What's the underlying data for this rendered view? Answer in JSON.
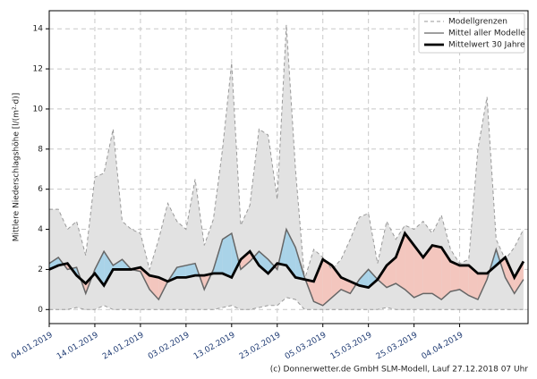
{
  "chart_data": {
    "type": "line",
    "x": [
      "04.01.2019",
      "06.01.2019",
      "08.01.2019",
      "10.01.2019",
      "12.01.2019",
      "14.01.2019",
      "16.01.2019",
      "18.01.2019",
      "20.01.2019",
      "22.01.2019",
      "24.01.2019",
      "26.01.2019",
      "28.01.2019",
      "30.01.2019",
      "01.02.2019",
      "03.02.2019",
      "05.02.2019",
      "07.02.2019",
      "09.02.2019",
      "11.02.2019",
      "13.02.2019",
      "15.02.2019",
      "17.02.2019",
      "19.02.2019",
      "21.02.2019",
      "23.02.2019",
      "25.02.2019",
      "27.02.2019",
      "01.03.2019",
      "03.03.2019",
      "05.03.2019",
      "07.03.2019",
      "09.03.2019",
      "11.03.2019",
      "13.03.2019",
      "15.03.2019",
      "17.03.2019",
      "19.03.2019",
      "21.03.2019",
      "23.03.2019",
      "25.03.2019",
      "27.03.2019",
      "29.03.2019",
      "31.03.2019",
      "02.04.2019",
      "04.04.2019",
      "06.04.2019",
      "08.04.2019",
      "10.04.2019",
      "12.04.2019",
      "14.04.2019",
      "16.04.2019",
      "18.04.2019"
    ],
    "series": [
      {
        "name": "Modellgrenzen",
        "color": "#999999",
        "fill": "#e2e2e2",
        "values": [
          5.0,
          5.0,
          4.0,
          4.4,
          2.7,
          6.6,
          6.8,
          9.0,
          4.4,
          4.0,
          3.8,
          2.0,
          3.5,
          5.3,
          4.4,
          4.0,
          6.5,
          3.2,
          4.5,
          8.0,
          12.3,
          4.2,
          5.2,
          9.0,
          8.7,
          5.5,
          14.2,
          7.0,
          1.5,
          3.0,
          2.6,
          2.0,
          2.5,
          3.5,
          4.6,
          4.8,
          2.3,
          4.4,
          3.5,
          4.2,
          4.0,
          4.4,
          3.8,
          4.7,
          3.0,
          2.3,
          2.5,
          8.0,
          10.6,
          3.5,
          2.5,
          3.1,
          4.0
        ],
        "lower": [
          0,
          0,
          0,
          0.1,
          0,
          0,
          0.2,
          0,
          0,
          0,
          0,
          0,
          0,
          0,
          0,
          0,
          0,
          0,
          0,
          0.1,
          0.2,
          0,
          0,
          0.1,
          0.2,
          0.2,
          0.6,
          0.5,
          0,
          0,
          0,
          0,
          0,
          0,
          0,
          0,
          0,
          0.1,
          0,
          0,
          0,
          0,
          0,
          0,
          0,
          0,
          0,
          0,
          0,
          0,
          0,
          0,
          0
        ]
      },
      {
        "name": "Mittel aller Modelle",
        "color": "#666666",
        "values": [
          2.3,
          2.6,
          2.0,
          2.1,
          0.8,
          2.0,
          2.9,
          2.2,
          2.5,
          2.0,
          1.9,
          1.0,
          0.5,
          1.4,
          2.1,
          2.2,
          2.3,
          1.0,
          2.0,
          3.5,
          3.8,
          2.0,
          2.4,
          2.9,
          2.5,
          2.0,
          4.0,
          3.1,
          1.6,
          0.4,
          0.2,
          0.6,
          1.0,
          0.8,
          1.5,
          2.0,
          1.5,
          1.1,
          1.3,
          1.0,
          0.6,
          0.8,
          0.8,
          0.5,
          0.9,
          1.0,
          0.7,
          0.5,
          1.5,
          3.0,
          1.6,
          0.8,
          1.5
        ]
      },
      {
        "name": "Mittelwert 30 Jahre",
        "color": "#000000",
        "values": [
          2.0,
          2.2,
          2.3,
          1.7,
          1.3,
          1.8,
          1.2,
          2.0,
          2.0,
          2.0,
          2.1,
          1.7,
          1.6,
          1.4,
          1.6,
          1.6,
          1.7,
          1.7,
          1.8,
          1.8,
          1.6,
          2.5,
          2.9,
          2.2,
          1.8,
          2.3,
          2.2,
          1.6,
          1.5,
          1.4,
          2.5,
          2.2,
          1.6,
          1.4,
          1.2,
          1.1,
          1.5,
          2.2,
          2.6,
          3.8,
          3.2,
          2.6,
          3.2,
          3.1,
          2.4,
          2.2,
          2.2,
          1.8,
          1.8,
          2.2,
          2.6,
          1.6,
          2.4
        ]
      }
    ],
    "above_color": "#a9d3e8",
    "below_color": "#f3c6be",
    "ylabel": "Mittlere Niederschlagshöhe [l/(m²·d)]",
    "xlim": [
      "04.01.2019",
      "19.04.2019"
    ],
    "xticks": [
      "04.01.2019",
      "14.01.2019",
      "24.01.2019",
      "03.02.2019",
      "13.02.2019",
      "23.02.2019",
      "05.03.2019",
      "15.03.2019",
      "25.03.2019",
      "04.04.2019"
    ],
    "ylim": [
      -0.7,
      14.9
    ],
    "yticks": [
      0,
      2,
      4,
      6,
      8,
      10,
      12,
      14
    ],
    "grid": true,
    "legend": "upper right",
    "footer": "(c) Donnerwetter.de GmbH SLM-Modell, Lauf 27.12.2018 07 Uhr"
  }
}
